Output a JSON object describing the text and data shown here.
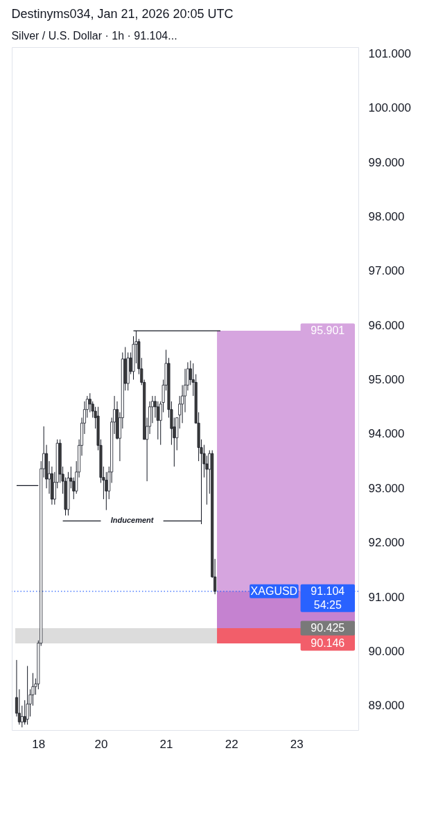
{
  "chart_data": {
    "type": "candlestick",
    "title": "Destinyms034, Jan 21, 2026 20:05 UTC",
    "subtitle": "Silver / U.S. Dollar · 1h · 91.104...",
    "categories": [
      null,
      null,
      null,
      null,
      null,
      null,
      null,
      null,
      "18",
      null,
      null,
      null,
      null,
      null,
      null,
      null,
      null,
      null,
      null,
      null,
      null,
      null,
      null,
      null,
      null,
      null,
      null,
      null,
      null,
      null,
      null,
      "20",
      null,
      null,
      null,
      null,
      null,
      null,
      null,
      null,
      null,
      null,
      null,
      null,
      null,
      null,
      null,
      null,
      null,
      null,
      null,
      null,
      null,
      null,
      null,
      "21",
      null,
      null,
      null,
      null,
      null,
      null,
      null,
      null,
      null,
      null,
      null,
      null,
      null,
      null,
      null,
      null,
      null,
      null,
      null,
      null,
      null,
      null,
      null,
      "22",
      null,
      null,
      null,
      null,
      null,
      null,
      null,
      null,
      null,
      null,
      null,
      null,
      null,
      null,
      null,
      null,
      null,
      null,
      null,
      null,
      null,
      null,
      null,
      "23",
      null,
      null,
      null,
      null,
      null,
      null,
      null,
      null,
      null,
      null,
      null,
      null,
      null,
      null,
      null,
      null,
      null,
      null,
      null,
      null,
      null
    ],
    "ohlc": [
      [
        89.15,
        89.84,
        88.8,
        88.86
      ],
      [
        88.86,
        89.3,
        88.65,
        88.7
      ],
      [
        88.7,
        89.0,
        88.6,
        88.8
      ],
      [
        88.8,
        89.1,
        88.65,
        88.7
      ],
      [
        88.75,
        89.73,
        88.65,
        89.03
      ],
      [
        89.03,
        89.3,
        88.8,
        89.2
      ],
      [
        89.2,
        89.6,
        89.0,
        89.35
      ],
      [
        89.35,
        89.5,
        89.2,
        89.4
      ],
      [
        89.4,
        90.2,
        89.3,
        90.15
      ],
      [
        90.15,
        93.5,
        90.1,
        93.36
      ],
      [
        93.36,
        94.14,
        93.2,
        93.64
      ],
      [
        93.64,
        93.8,
        93.0,
        93.17
      ],
      [
        93.17,
        93.5,
        92.9,
        93.27
      ],
      [
        93.27,
        93.4,
        92.7,
        92.8
      ],
      [
        92.8,
        93.3,
        92.7,
        93.11
      ],
      [
        93.11,
        93.9,
        93.0,
        93.83
      ],
      [
        93.83,
        93.9,
        93.1,
        93.26
      ],
      [
        93.26,
        93.4,
        92.9,
        93.13
      ],
      [
        93.13,
        93.2,
        92.5,
        92.61
      ],
      [
        92.61,
        93.3,
        92.5,
        93.19
      ],
      [
        93.19,
        93.4,
        93.0,
        93.13
      ],
      [
        93.13,
        93.2,
        92.8,
        92.95
      ],
      [
        92.95,
        93.5,
        92.9,
        93.3
      ],
      [
        93.3,
        93.9,
        93.2,
        93.79
      ],
      [
        93.79,
        94.3,
        93.6,
        94.2
      ],
      [
        94.2,
        94.6,
        94.0,
        94.45
      ],
      [
        94.45,
        94.7,
        94.3,
        94.64
      ],
      [
        94.64,
        94.75,
        94.4,
        94.55
      ],
      [
        94.55,
        94.6,
        94.3,
        94.42
      ],
      [
        94.42,
        94.5,
        94.1,
        94.3
      ],
      [
        94.33,
        94.5,
        93.7,
        93.79
      ],
      [
        93.79,
        93.9,
        93.1,
        93.2
      ],
      [
        93.2,
        93.4,
        92.8,
        93.15
      ],
      [
        93.15,
        93.3,
        92.6,
        92.95
      ],
      [
        92.95,
        93.4,
        92.8,
        93.3
      ],
      [
        93.3,
        94.3,
        93.1,
        94.22
      ],
      [
        94.22,
        94.7,
        94.0,
        94.45
      ],
      [
        94.45,
        94.6,
        93.9,
        93.92
      ],
      [
        93.92,
        94.4,
        93.5,
        94.3
      ],
      [
        94.3,
        95.5,
        94.1,
        95.38
      ],
      [
        95.38,
        95.6,
        94.8,
        94.93
      ],
      [
        94.93,
        95.5,
        94.8,
        95.4
      ],
      [
        95.4,
        95.5,
        95.1,
        95.15
      ],
      [
        95.15,
        95.8,
        95.0,
        95.65
      ],
      [
        95.65,
        95.9,
        95.3,
        95.7
      ],
      [
        95.7,
        95.75,
        95.1,
        95.2
      ],
      [
        95.2,
        95.4,
        94.9,
        94.95
      ],
      [
        94.95,
        95.0,
        93.9,
        93.9
      ],
      [
        93.9,
        94.3,
        93.13,
        94.14
      ],
      [
        94.14,
        94.6,
        94.0,
        94.5
      ],
      [
        94.5,
        94.7,
        94.2,
        94.6
      ],
      [
        94.6,
        94.7,
        94.3,
        94.5
      ],
      [
        94.5,
        94.6,
        93.9,
        94.25
      ],
      [
        94.25,
        94.6,
        93.8,
        94.55
      ],
      [
        94.58,
        95.0,
        94.4,
        94.9
      ],
      [
        94.9,
        95.55,
        94.8,
        95.3
      ],
      [
        95.3,
        95.4,
        94.3,
        94.45
      ],
      [
        94.45,
        94.6,
        93.8,
        94.1
      ],
      [
        94.13,
        94.3,
        93.4,
        93.93
      ],
      [
        93.93,
        94.3,
        93.7,
        94.3
      ],
      [
        94.35,
        94.7,
        94.1,
        94.55
      ],
      [
        94.55,
        94.9,
        94.2,
        94.7
      ],
      [
        94.7,
        95.2,
        94.4,
        94.9
      ],
      [
        94.9,
        95.32,
        94.8,
        95.2
      ],
      [
        95.2,
        95.35,
        94.9,
        95.0
      ],
      [
        95.0,
        95.3,
        94.7,
        94.95
      ],
      [
        94.95,
        95.1,
        94.2,
        94.2
      ],
      [
        94.2,
        94.4,
        93.5,
        93.75
      ],
      [
        93.75,
        93.9,
        92.34,
        93.64
      ],
      [
        93.64,
        93.8,
        93.2,
        93.45
      ],
      [
        93.45,
        93.6,
        92.7,
        93.35
      ],
      [
        93.35,
        93.7,
        92.9,
        93.64
      ],
      [
        93.64,
        93.7,
        91.35,
        91.37
      ],
      [
        91.37,
        91.7,
        91.05,
        91.104
      ],
      null,
      null,
      null,
      null,
      null,
      null,
      null,
      null,
      null,
      null,
      null,
      null,
      null,
      null,
      null,
      null,
      null,
      null,
      null,
      null,
      null,
      null,
      null,
      null,
      null,
      null,
      null,
      null,
      null,
      null,
      null,
      null,
      null,
      null,
      null,
      null,
      null,
      null,
      null,
      null,
      null,
      null,
      null,
      null,
      null,
      null,
      null,
      null,
      null,
      null,
      null
    ],
    "series": [
      {
        "type": "line",
        "color": "#131722",
        "values": [
          93.05,
          93.05,
          93.05,
          93.05,
          93.05,
          93.05,
          93.05,
          93.05,
          93.05,
          null,
          null,
          null,
          null,
          null,
          null,
          null,
          null,
          null,
          null,
          null,
          null,
          null,
          null,
          null,
          null,
          null,
          null,
          null,
          null,
          null,
          null,
          null,
          null,
          null,
          null,
          null,
          null,
          null,
          null,
          null,
          null,
          null,
          null,
          null,
          null,
          null,
          null,
          null,
          null,
          null,
          null,
          null,
          null,
          null,
          null,
          null,
          null,
          null,
          null,
          null,
          null,
          null,
          null,
          null,
          null,
          null,
          null,
          null,
          null,
          null,
          null,
          null,
          null,
          null,
          null,
          null,
          null,
          null,
          null,
          null,
          null,
          null,
          null,
          null,
          null,
          null,
          null,
          null,
          null,
          null,
          null,
          null,
          null,
          null,
          null,
          null,
          null,
          null,
          null,
          null,
          null,
          null,
          null,
          null,
          null,
          null,
          null,
          null,
          null,
          null,
          null,
          null,
          null,
          null,
          null,
          null,
          null,
          null,
          null,
          null,
          null,
          null,
          null,
          null,
          null
        ]
      },
      {
        "type": "line",
        "color": "#131722",
        "values": [
          null,
          null,
          null,
          null,
          null,
          null,
          null,
          null,
          null,
          null,
          null,
          null,
          null,
          null,
          null,
          null,
          null,
          null,
          null,
          null,
          null,
          null,
          null,
          null,
          null,
          null,
          null,
          null,
          null,
          null,
          null,
          null,
          null,
          null,
          null,
          null,
          null,
          null,
          null,
          null,
          null,
          null,
          null,
          95.9,
          95.9,
          95.9,
          95.9,
          95.9,
          95.9,
          95.9,
          95.9,
          95.9,
          95.9,
          95.9,
          95.9,
          95.9,
          95.9,
          95.9,
          95.9,
          95.9,
          95.9,
          95.9,
          95.9,
          95.9,
          95.9,
          95.9,
          95.9,
          95.9,
          95.9,
          95.9,
          95.9,
          95.9,
          95.9,
          95.9,
          95.9,
          95.9,
          null,
          null,
          null,
          null,
          null,
          null,
          null,
          null,
          null,
          null,
          null,
          null,
          null,
          null,
          null,
          null,
          null,
          null,
          null,
          null,
          null,
          null,
          null,
          null,
          null,
          null,
          null,
          null,
          null,
          null,
          null,
          null,
          null,
          null,
          null,
          null,
          null,
          null,
          null,
          null,
          null,
          null,
          null,
          null,
          null,
          null,
          null,
          null,
          null
        ]
      },
      {
        "type": "line",
        "color": "#131722",
        "values": [
          null,
          null,
          null,
          null,
          null,
          null,
          null,
          null,
          null,
          null,
          null,
          null,
          null,
          null,
          null,
          null,
          null,
          92.4,
          92.4,
          92.4,
          92.4,
          92.4,
          92.4,
          92.4,
          92.4,
          92.4,
          92.4,
          92.4,
          92.4,
          92.4,
          92.4,
          92.4,
          null,
          null,
          null,
          null,
          null,
          null,
          null,
          null,
          null,
          null,
          null,
          null,
          null,
          null,
          null,
          null,
          null,
          null,
          null,
          null,
          null,
          null,
          null,
          null,
          null,
          null,
          null,
          null,
          null,
          null,
          null,
          null,
          null,
          null,
          null,
          null,
          null,
          null,
          null,
          null,
          null,
          null,
          null,
          null,
          null,
          null,
          null,
          null,
          null,
          null,
          null,
          null,
          null,
          null,
          null,
          null,
          null,
          null,
          null,
          null,
          null,
          null,
          null,
          null,
          null,
          null,
          null,
          null,
          null,
          null,
          null,
          null,
          null,
          null,
          null,
          null,
          null,
          null,
          null,
          null,
          null,
          null,
          null,
          null,
          null,
          null,
          null,
          null,
          null,
          null,
          null,
          null,
          null
        ]
      },
      {
        "type": "line",
        "color": "#131722",
        "values": [
          null,
          null,
          null,
          null,
          null,
          null,
          null,
          null,
          null,
          null,
          null,
          null,
          null,
          null,
          null,
          null,
          null,
          null,
          null,
          null,
          null,
          null,
          null,
          null,
          null,
          null,
          null,
          null,
          null,
          null,
          null,
          null,
          null,
          null,
          null,
          null,
          null,
          null,
          null,
          null,
          null,
          null,
          null,
          null,
          null,
          null,
          null,
          null,
          null,
          null,
          null,
          null,
          null,
          null,
          92.4,
          92.4,
          92.4,
          92.4,
          92.4,
          92.4,
          92.4,
          92.4,
          92.4,
          92.4,
          92.4,
          92.4,
          92.4,
          92.4,
          92.4,
          null,
          null,
          null,
          null,
          null,
          null,
          null,
          null,
          null,
          null,
          null,
          null,
          null,
          null,
          null,
          null,
          null,
          null,
          null,
          null,
          null,
          null,
          null,
          null,
          null,
          null,
          null,
          null,
          null,
          null,
          null,
          null,
          null,
          null,
          null,
          null,
          null,
          null,
          null,
          null,
          null,
          null,
          null,
          null,
          null,
          null,
          null,
          null,
          null,
          null,
          null,
          null,
          null,
          null,
          null,
          null
        ]
      }
    ],
    "annotations": [
      "Inducement",
      "91.104",
      "54:25"
    ],
    "ref_lines": [
      {
        "axis": "y",
        "value": 91.104,
        "label": "XAGUSD",
        "color": "#2962ff",
        "line_style": "dotted"
      }
    ],
    "bands": [
      {
        "axis": "y",
        "from": 90.146,
        "to": 90.425,
        "label": "90.425",
        "color": "#dcdcdc"
      },
      {
        "axis": "y",
        "from": 90.146,
        "to": 90.425,
        "label": "90.146",
        "color": "#f25e6a"
      },
      {
        "axis": "y",
        "from": 90.425,
        "to": 95.901,
        "label": "95.901",
        "color": "#d6a5df"
      },
      {
        "axis": "y",
        "from": 90.425,
        "to": 91.104,
        "color": "#c582d0"
      }
    ],
    "ylim": [
      88.55,
      101.12
    ],
    "yticks": [
      {
        "value": 89,
        "label": "89.000"
      },
      {
        "value": 90,
        "label": "90.000"
      },
      {
        "value": 91,
        "label": "91.000"
      },
      {
        "value": 92,
        "label": "92.000"
      },
      {
        "value": 93,
        "label": "93.000"
      },
      {
        "value": 94,
        "label": "94.000"
      },
      {
        "value": 95,
        "label": "95.000"
      },
      {
        "value": 96,
        "label": "96.000"
      },
      {
        "value": 97,
        "label": "97.000"
      },
      {
        "value": 98,
        "label": "98.000"
      },
      {
        "value": 99,
        "label": "99.000"
      },
      {
        "value": 100,
        "label": "100.000"
      },
      {
        "value": 101,
        "label": "101.000"
      }
    ],
    "grid": false
  }
}
